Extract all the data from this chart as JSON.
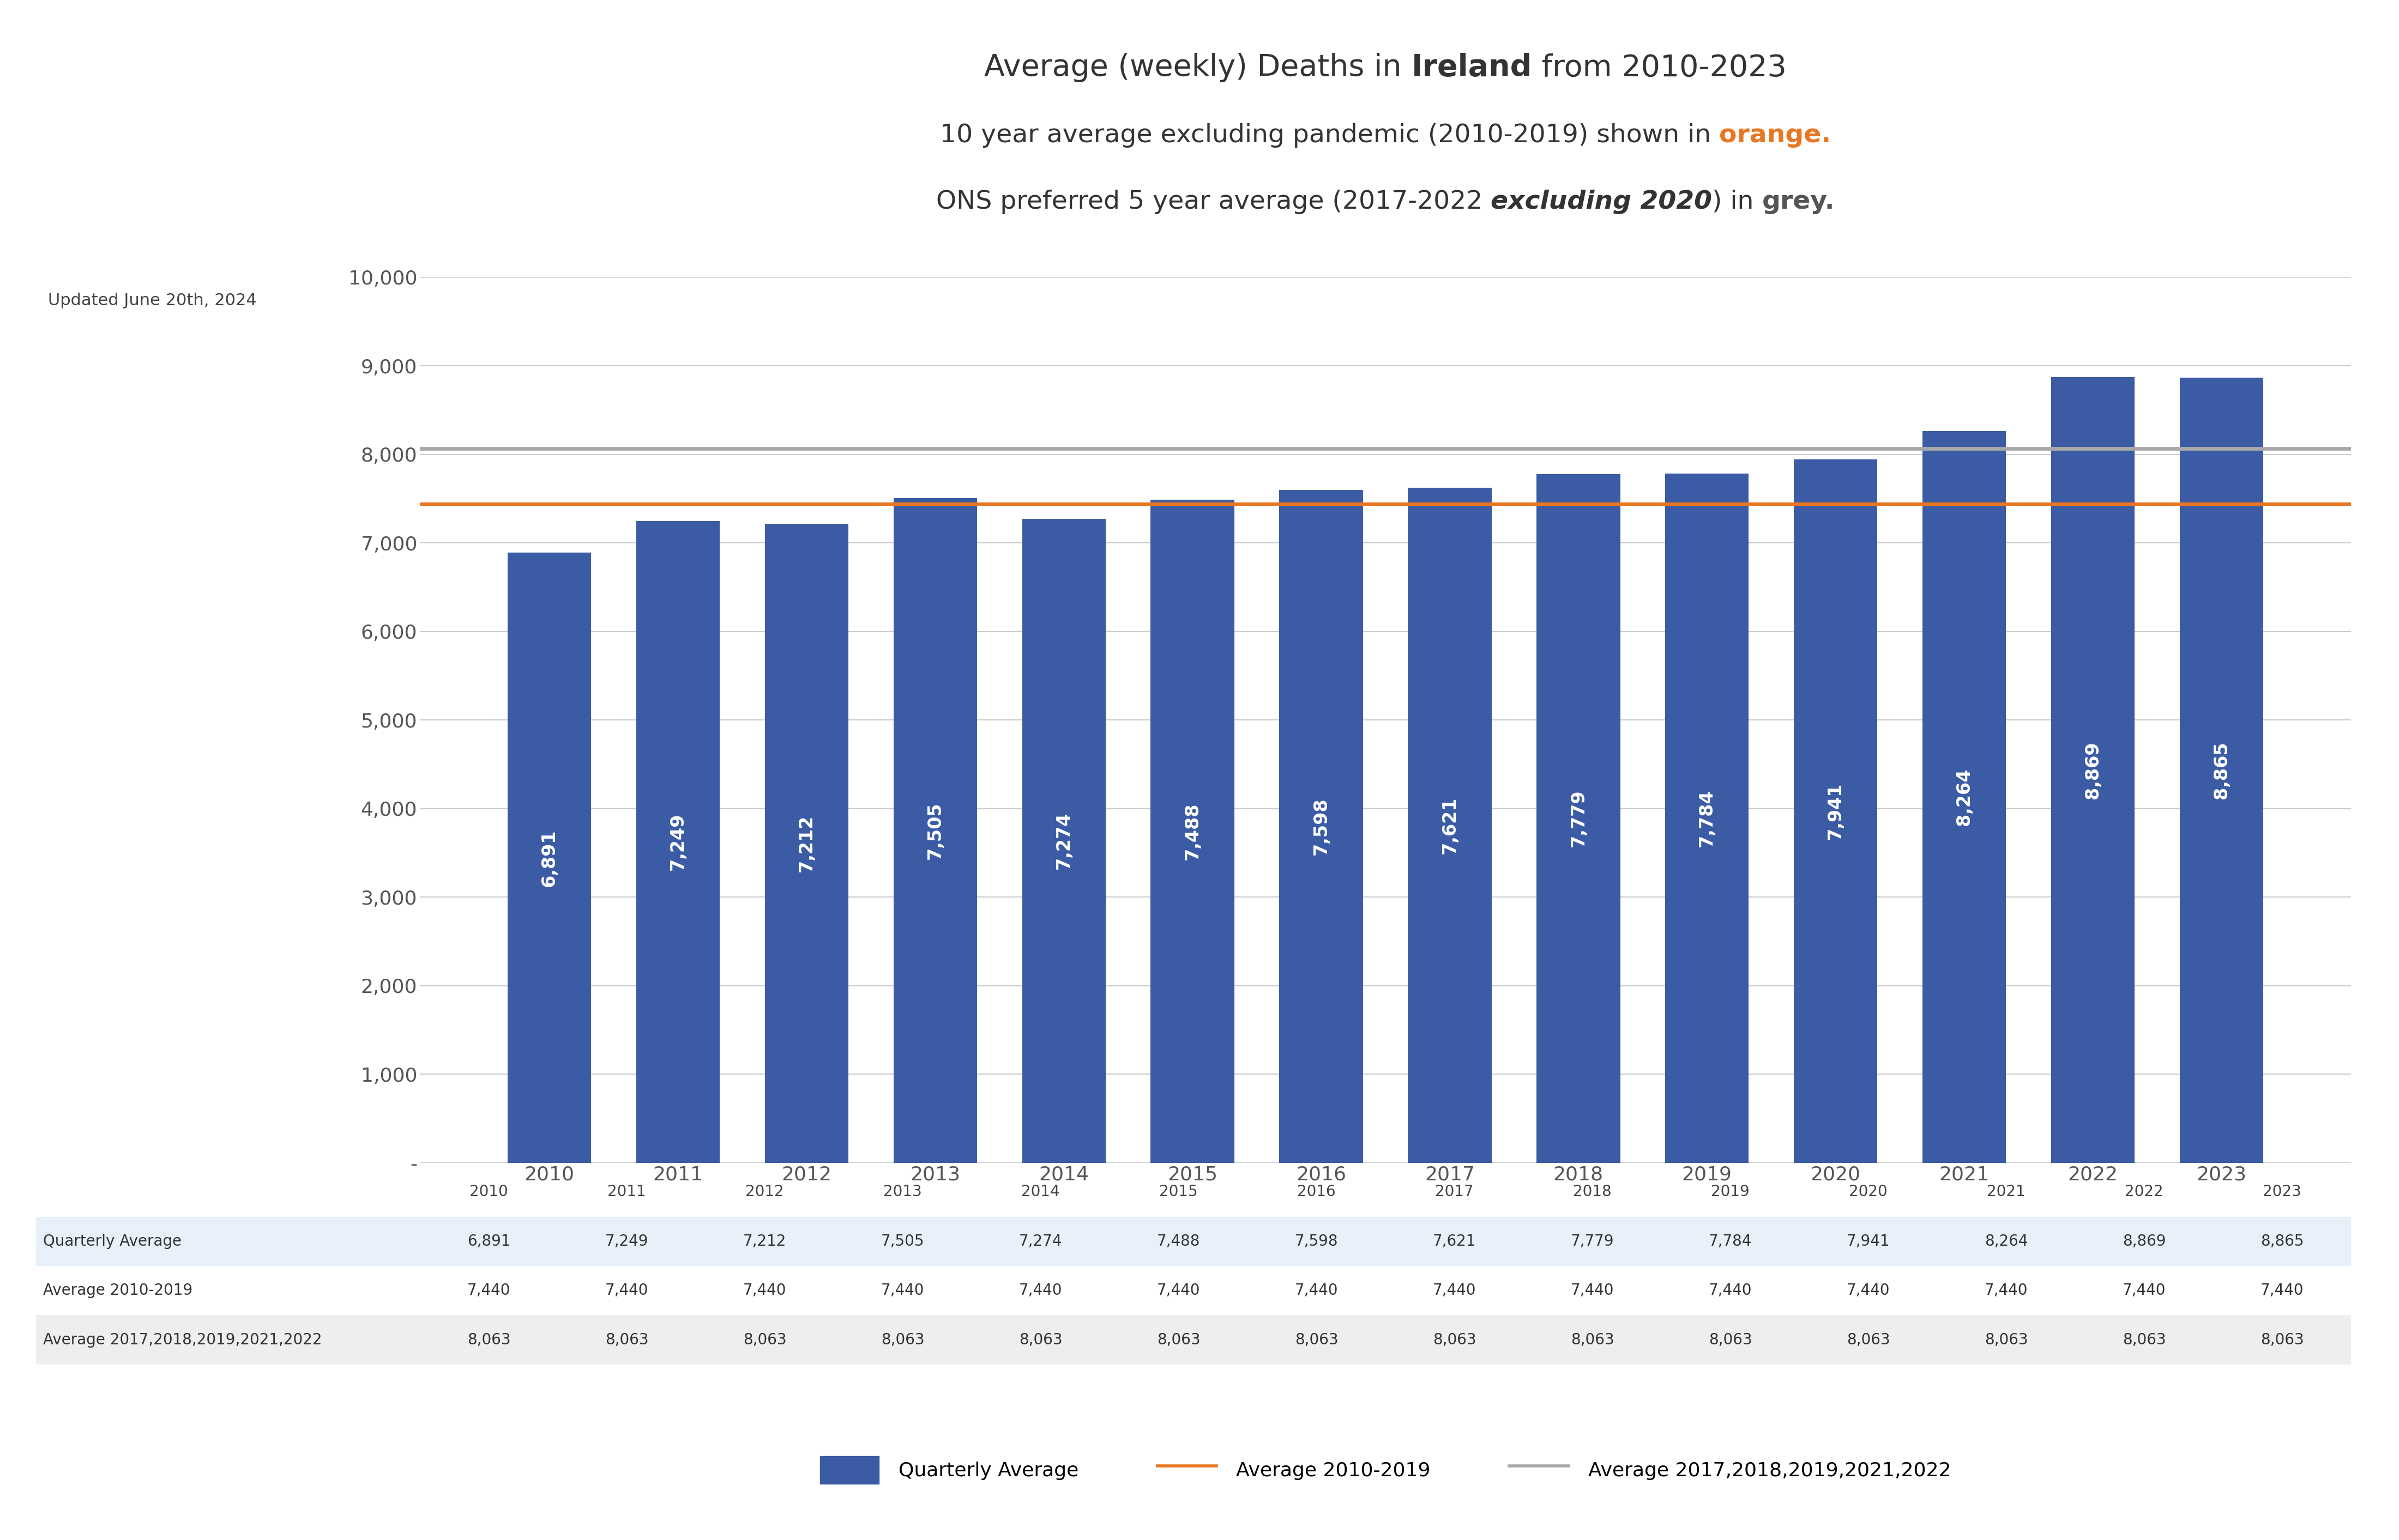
{
  "years": [
    2010,
    2011,
    2012,
    2013,
    2014,
    2015,
    2016,
    2017,
    2018,
    2019,
    2020,
    2021,
    2022,
    2023
  ],
  "values": [
    6891,
    7249,
    7212,
    7505,
    7274,
    7488,
    7598,
    7621,
    7779,
    7784,
    7941,
    8264,
    8869,
    8865
  ],
  "avg_2010_2019": 7440,
  "avg_5yr": 8063,
  "bar_color": "#3B5BA5",
  "orange_color": "#E87722",
  "gray_color": "#A8A8A8",
  "background_color": "#FFFFFF",
  "legend_bar": "Quarterly Average",
  "legend_orange": "Average 2010-2019",
  "legend_gray": "Average 2017,2018,2019,2021,2022",
  "updated_text": "Updated June 20th, 2024",
  "ylim": [
    0,
    10000
  ],
  "yticks": [
    0,
    1000,
    2000,
    3000,
    4000,
    5000,
    6000,
    7000,
    8000,
    9000,
    10000
  ],
  "ytick_labels": [
    "-",
    "1,000",
    "2,000",
    "3,000",
    "4,000",
    "5,000",
    "6,000",
    "7,000",
    "8,000",
    "9,000",
    "10,000"
  ],
  "table_rows": [
    {
      "label": "Quarterly Average",
      "values": [
        6891,
        7249,
        7212,
        7505,
        7274,
        7488,
        7598,
        7621,
        7779,
        7784,
        7941,
        8264,
        8869,
        8865
      ]
    },
    {
      "label": "Average 2010-2019",
      "values": [
        7440,
        7440,
        7440,
        7440,
        7440,
        7440,
        7440,
        7440,
        7440,
        7440,
        7440,
        7440,
        7440,
        7440
      ]
    },
    {
      "label": "Average 2017,2018,2019,2021,2022",
      "values": [
        8063,
        8063,
        8063,
        8063,
        8063,
        8063,
        8063,
        8063,
        8063,
        8063,
        8063,
        8063,
        8063,
        8063
      ]
    }
  ],
  "title_fontsize": 40,
  "subtitle_fontsize": 34,
  "tick_fontsize": 26,
  "table_fontsize": 20,
  "label_fontsize": 24,
  "legend_fontsize": 26
}
